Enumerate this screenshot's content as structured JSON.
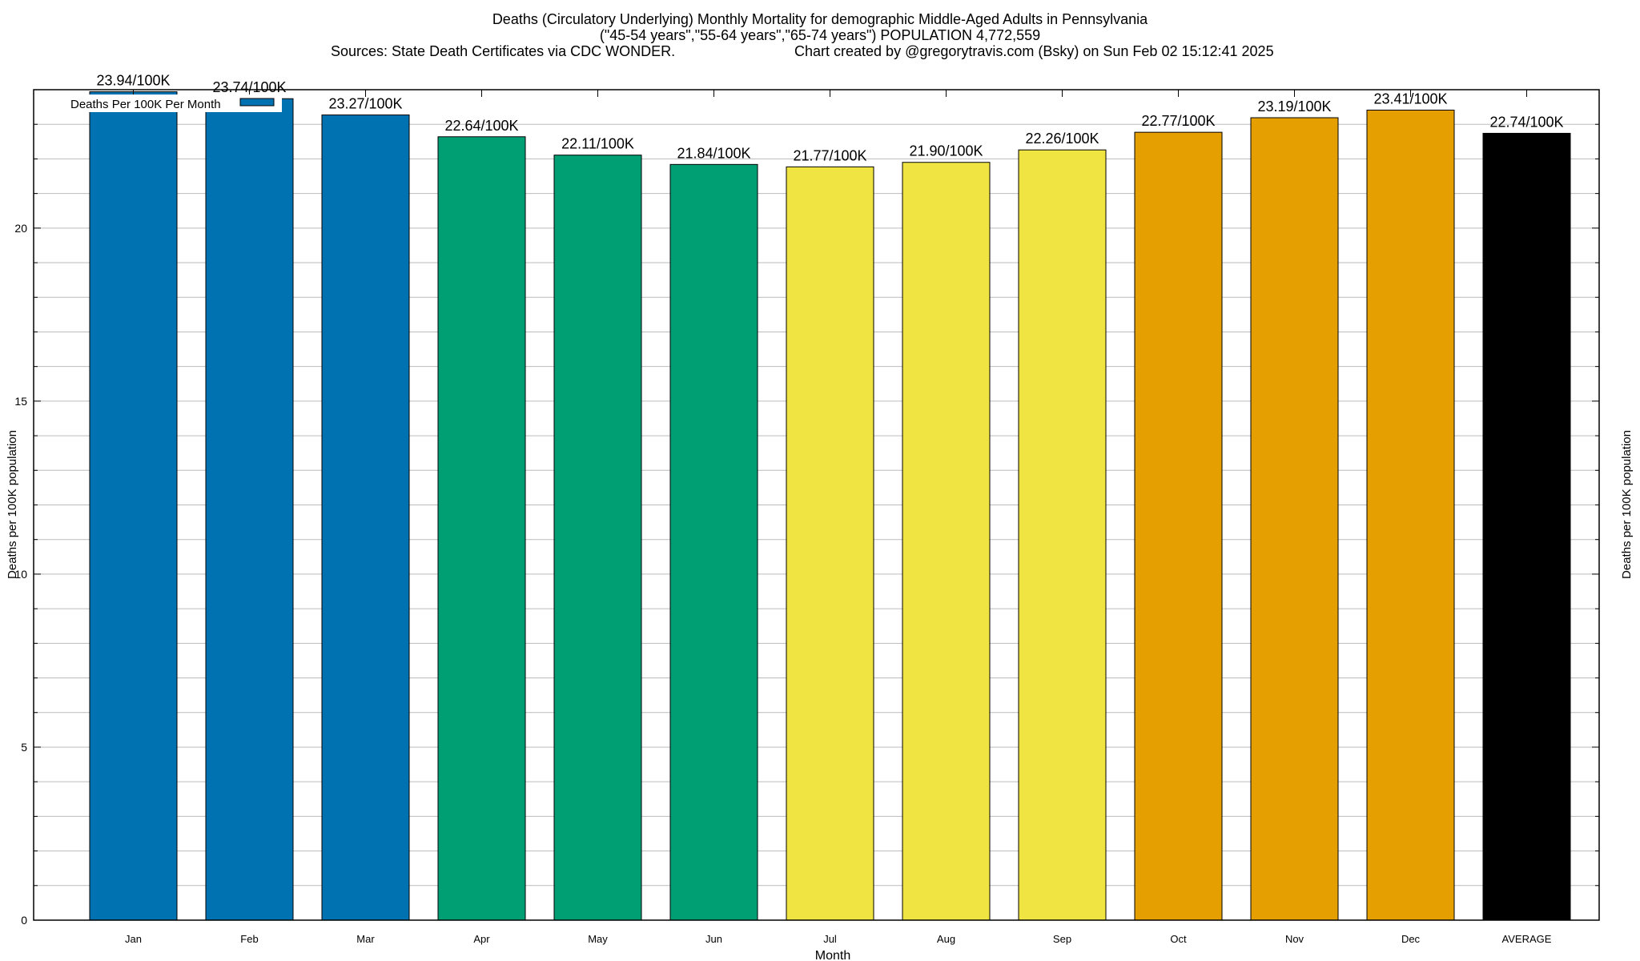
{
  "chart_data": {
    "type": "bar",
    "title": "Deaths (Circulatory Underlying) Monthly Mortality for demographic Middle-Aged Adults in Pennsylvania",
    "subtitle": "(\"45-54 years\",\"55-64 years\",\"65-74 years\") POPULATION 4,772,559",
    "sources": "Sources: State Death Certificates via CDC WONDER.",
    "credit": "Chart created by @gregorytravis.com (Bsky) on Sun Feb 02 15:12:41 2025",
    "xlabel": "Month",
    "ylabel": "Deaths per 100K population",
    "ylabel_right": "Deaths per 100K population",
    "legend": "Deaths Per 100K Per Month",
    "legend_position": "top-left",
    "categories": [
      "Jan",
      "Feb",
      "Mar",
      "Apr",
      "May",
      "Jun",
      "Jul",
      "Aug",
      "Sep",
      "Oct",
      "Nov",
      "Dec",
      "AVERAGE"
    ],
    "values": [
      23.94,
      23.74,
      23.27,
      22.64,
      22.11,
      21.84,
      21.77,
      21.9,
      22.26,
      22.77,
      23.19,
      23.41,
      22.74
    ],
    "data_labels": [
      "23.94/100K",
      "23.74/100K",
      "23.27/100K",
      "22.64/100K",
      "22.11/100K",
      "21.84/100K",
      "21.77/100K",
      "21.90/100K",
      "22.26/100K",
      "22.77/100K",
      "23.19/100K",
      "23.41/100K",
      "22.74/100K"
    ],
    "colors": [
      "#0072b2",
      "#0072b2",
      "#0072b2",
      "#009e73",
      "#009e73",
      "#009e73",
      "#f0e442",
      "#f0e442",
      "#f0e442",
      "#e69f00",
      "#e69f00",
      "#e69f00",
      "#000000"
    ],
    "ylim": [
      0,
      24
    ],
    "yticks": [
      0,
      5,
      10,
      15,
      20
    ],
    "grid": true
  }
}
